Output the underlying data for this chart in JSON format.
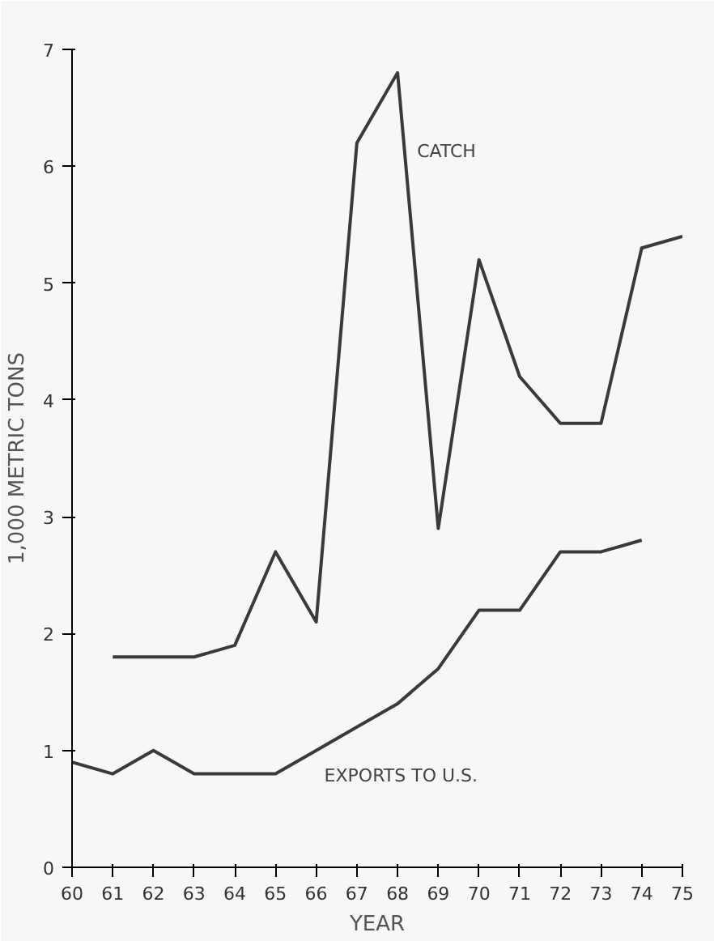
{
  "chart_data": {
    "type": "line",
    "xlabel": "YEAR",
    "ylabel": "1,000 METRIC TONS",
    "x": [
      60,
      61,
      62,
      63,
      64,
      65,
      66,
      67,
      68,
      69,
      70,
      71,
      72,
      73,
      74,
      75
    ],
    "xlim": [
      60,
      75
    ],
    "ylim": [
      0,
      7
    ],
    "xticks": [
      60,
      61,
      62,
      63,
      64,
      65,
      66,
      67,
      68,
      69,
      70,
      71,
      72,
      73,
      74,
      75
    ],
    "yticks": [
      0,
      1,
      2,
      3,
      4,
      5,
      6,
      7
    ],
    "grid": false,
    "series": [
      {
        "name": "CATCH",
        "color": "#3a3a3a",
        "values": [
          null,
          1.8,
          1.8,
          1.8,
          1.9,
          2.7,
          2.1,
          6.2,
          6.8,
          2.9,
          5.2,
          4.2,
          3.8,
          3.8,
          5.3,
          5.4
        ]
      },
      {
        "name": "EXPORTS TO U.S.",
        "color": "#3a3a3a",
        "values": [
          0.9,
          0.8,
          1.0,
          0.8,
          0.8,
          0.8,
          1.0,
          1.2,
          1.4,
          1.7,
          2.2,
          2.2,
          2.7,
          2.7,
          2.8,
          null
        ]
      }
    ]
  }
}
